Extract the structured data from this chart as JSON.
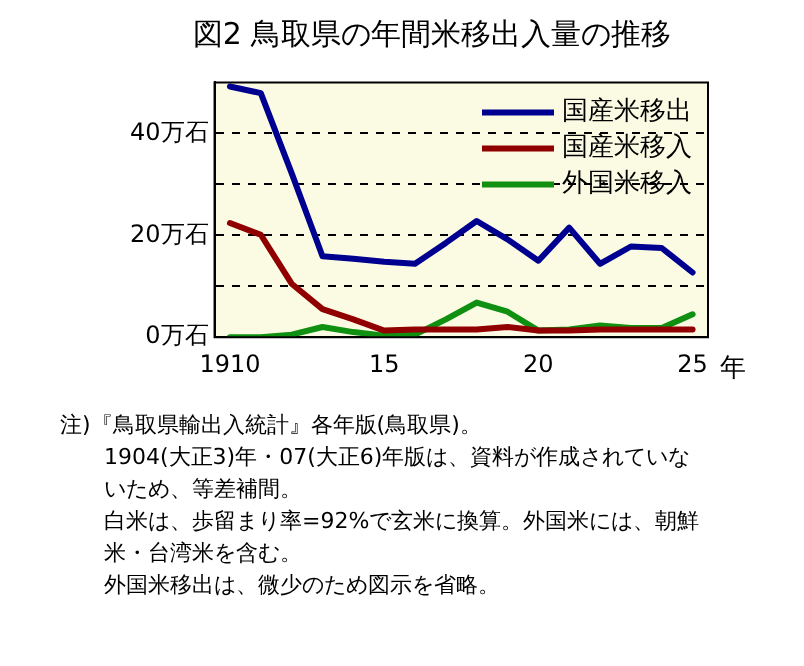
{
  "chart_data": {
    "type": "line",
    "title": "図2  鳥取県の年間米移出入量の推移",
    "xlabel": "年",
    "x": [
      1910,
      1911,
      1912,
      1913,
      1914,
      1915,
      1916,
      1917,
      1918,
      1919,
      1920,
      1921,
      1922,
      1923,
      1924,
      1925
    ],
    "series": [
      {
        "name": "国産米移出",
        "color": "#000090",
        "values": [
          49.2,
          47.9,
          32.2,
          15.9,
          15.4,
          14.8,
          14.4,
          18.5,
          22.8,
          19.2,
          15.0,
          21.5,
          14.4,
          17.8,
          17.5,
          12.7
        ]
      },
      {
        "name": "国産米移入",
        "color": "#900000",
        "values": [
          22.4,
          20.1,
          10.5,
          5.5,
          3.5,
          1.3,
          1.5,
          1.5,
          1.5,
          2.0,
          1.3,
          1.3,
          1.5,
          1.5,
          1.5,
          1.5
        ]
      },
      {
        "name": "外国米移入",
        "color": "#109010",
        "values": [
          0,
          0,
          0.5,
          2.0,
          1.0,
          0.3,
          0.5,
          3.5,
          6.8,
          5.0,
          1.3,
          1.5,
          2.3,
          1.8,
          1.8,
          4.5
        ]
      }
    ],
    "xlim": [
      1909.5,
      1925.5
    ],
    "xticks": [
      {
        "value": 1910,
        "label": "1910"
      },
      {
        "value": 1915,
        "label": "15"
      },
      {
        "value": 1920,
        "label": "20"
      },
      {
        "value": 1925,
        "label": "25"
      }
    ],
    "ylim": [
      0,
      50
    ],
    "yticks": [
      {
        "value": 0,
        "label": "0万石"
      },
      {
        "value": 10,
        "label": null
      },
      {
        "value": 20,
        "label": "20万石"
      },
      {
        "value": 30,
        "label": null
      },
      {
        "value": 40,
        "label": "40万石"
      }
    ],
    "grid": "y",
    "legend": "top right",
    "marker": "none",
    "line_style": "solid",
    "annotations": [
      "注)『鳥取県輸出入統計』各年版(鳥取県)。",
      "1904(大正3)年・07(大正6)年版は、資料が作成されていないため、等差補間。",
      "白米は、歩留まり率=92%で玄米に換算。外国米には、朝鮮米・台湾米を含む。",
      "外国米移出は、微少のため図示を省略。"
    ]
  }
}
